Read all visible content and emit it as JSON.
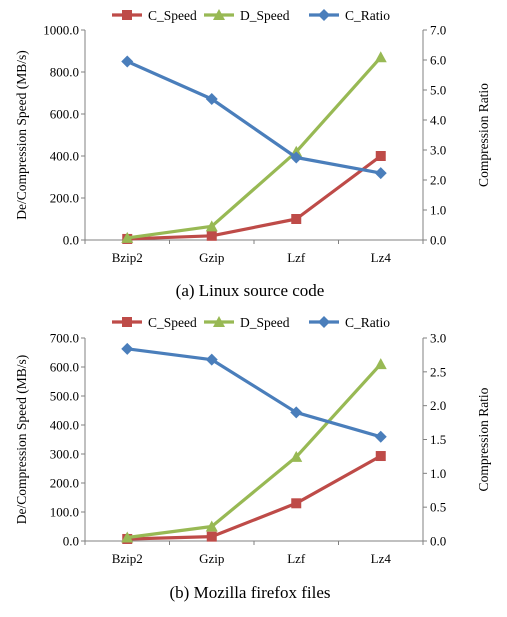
{
  "colors": {
    "c_speed": "#be4b48",
    "d_speed": "#98b954",
    "c_ratio": "#4a7ebb",
    "axis": "#808080"
  },
  "chart_data": [
    {
      "type": "line",
      "caption": "(a) Linux source code",
      "categories": [
        "Bzip2",
        "Gzip",
        "Lzf",
        "Lz4"
      ],
      "ylabel": "De/Compression Speed (MB/s)",
      "y2label": "Compression Ratio",
      "ylim": [
        0,
        1000
      ],
      "y2lim": [
        0,
        7
      ],
      "yticks": [
        "0.0",
        "200.0",
        "400.0",
        "600.0",
        "800.0",
        "1000.0"
      ],
      "y2ticks": [
        "0.0",
        "1.0",
        "2.0",
        "3.0",
        "4.0",
        "5.0",
        "6.0",
        "7.0"
      ],
      "legend_position": "top",
      "grid": false,
      "series": [
        {
          "name": "C_Speed",
          "axis": "left",
          "marker": "square",
          "color_key": "c_speed",
          "values": [
            5,
            20,
            100,
            400
          ]
        },
        {
          "name": "D_Speed",
          "axis": "left",
          "marker": "triangle",
          "color_key": "d_speed",
          "values": [
            10,
            65,
            420,
            870
          ]
        },
        {
          "name": "C_Ratio",
          "axis": "right",
          "marker": "diamond",
          "color_key": "c_ratio",
          "values": [
            5.95,
            4.7,
            2.75,
            2.23
          ]
        }
      ]
    },
    {
      "type": "line",
      "caption": "(b) Mozilla firefox files",
      "categories": [
        "Bzip2",
        "Gzip",
        "Lzf",
        "Lz4"
      ],
      "ylabel": "De/Compression Speed (MB/s)",
      "y2label": "Compression Ratio",
      "ylim": [
        0,
        700
      ],
      "y2lim": [
        0,
        3
      ],
      "yticks": [
        "0.0",
        "100.0",
        "200.0",
        "300.0",
        "400.0",
        "500.0",
        "600.0",
        "700.0"
      ],
      "y2ticks": [
        "0.0",
        "0.5",
        "1.0",
        "1.5",
        "2.0",
        "2.5",
        "3.0"
      ],
      "legend_position": "top",
      "grid": false,
      "series": [
        {
          "name": "C_Speed",
          "axis": "left",
          "marker": "square",
          "color_key": "c_speed",
          "values": [
            7,
            15,
            130,
            293
          ]
        },
        {
          "name": "D_Speed",
          "axis": "left",
          "marker": "triangle",
          "color_key": "d_speed",
          "values": [
            12,
            50,
            290,
            610
          ]
        },
        {
          "name": "C_Ratio",
          "axis": "right",
          "marker": "diamond",
          "color_key": "c_ratio",
          "values": [
            2.84,
            2.68,
            1.9,
            1.54
          ]
        }
      ]
    }
  ]
}
